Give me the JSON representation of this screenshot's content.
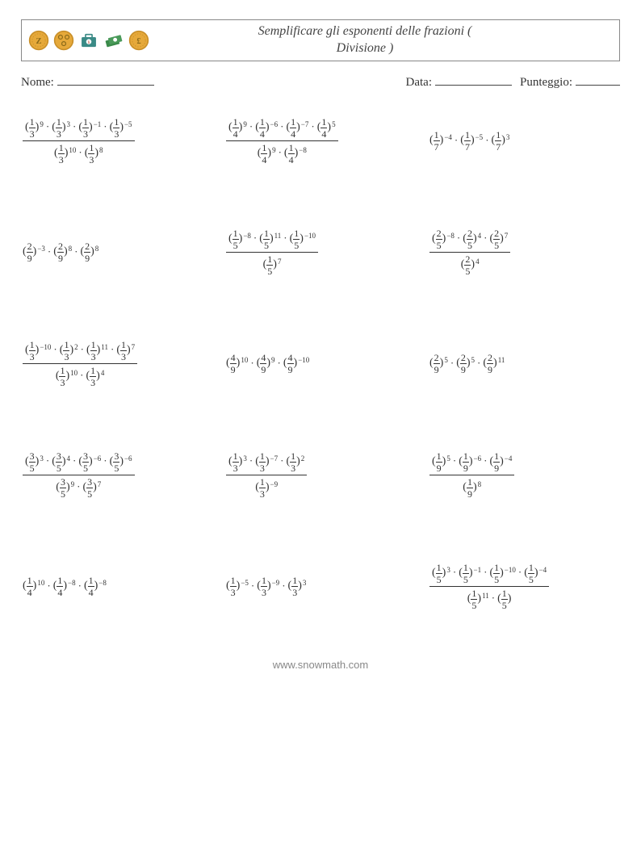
{
  "header": {
    "title_line1": "Semplificare gli esponenti delle frazioni (",
    "title_line2": "Divisione )",
    "icon_colors": {
      "gold": "#e6a93a",
      "gold_dark": "#c98f28",
      "teal": "#3a8a86",
      "green": "#3a8a4a",
      "red": "#c84a3a"
    }
  },
  "info": {
    "name_label": "Nome:",
    "date_label": "Data:",
    "score_label": "Punteggio:"
  },
  "footer": {
    "url": "www.snowmath.com"
  },
  "problems": [
    [
      {
        "type": "div",
        "num": [
          {
            "n": 1,
            "d": 3,
            "e": 9
          },
          {
            "n": 1,
            "d": 3,
            "e": 3
          },
          {
            "n": 1,
            "d": 3,
            "e": -1
          },
          {
            "n": 1,
            "d": 3,
            "e": -5
          }
        ],
        "den": [
          {
            "n": 1,
            "d": 3,
            "e": 10
          },
          {
            "n": 1,
            "d": 3,
            "e": 8
          }
        ]
      },
      {
        "type": "div",
        "num": [
          {
            "n": 1,
            "d": 4,
            "e": 9
          },
          {
            "n": 1,
            "d": 4,
            "e": -6
          },
          {
            "n": 1,
            "d": 4,
            "e": -7
          },
          {
            "n": 1,
            "d": 4,
            "e": 5
          }
        ],
        "den": [
          {
            "n": 1,
            "d": 4,
            "e": 9
          },
          {
            "n": 1,
            "d": 4,
            "e": -8
          }
        ]
      },
      {
        "type": "mul",
        "terms": [
          {
            "n": 1,
            "d": 7,
            "e": -4
          },
          {
            "n": 1,
            "d": 7,
            "e": -5
          },
          {
            "n": 1,
            "d": 7,
            "e": 3
          }
        ]
      }
    ],
    [
      {
        "type": "mul",
        "terms": [
          {
            "n": 2,
            "d": 9,
            "e": -3
          },
          {
            "n": 2,
            "d": 9,
            "e": 8
          },
          {
            "n": 2,
            "d": 9,
            "e": 8
          }
        ]
      },
      {
        "type": "div",
        "num": [
          {
            "n": 1,
            "d": 5,
            "e": -8
          },
          {
            "n": 1,
            "d": 5,
            "e": 11
          },
          {
            "n": 1,
            "d": 5,
            "e": -10
          }
        ],
        "den": [
          {
            "n": 1,
            "d": 5,
            "e": 7
          }
        ]
      },
      {
        "type": "div",
        "num": [
          {
            "n": 2,
            "d": 5,
            "e": -8
          },
          {
            "n": 2,
            "d": 5,
            "e": 4
          },
          {
            "n": 2,
            "d": 5,
            "e": 7
          }
        ],
        "den": [
          {
            "n": 2,
            "d": 5,
            "e": 4
          }
        ]
      }
    ],
    [
      {
        "type": "div",
        "num": [
          {
            "n": 1,
            "d": 3,
            "e": -10
          },
          {
            "n": 1,
            "d": 3,
            "e": 2
          },
          {
            "n": 1,
            "d": 3,
            "e": 11
          },
          {
            "n": 1,
            "d": 3,
            "e": 7
          }
        ],
        "den": [
          {
            "n": 1,
            "d": 3,
            "e": 10
          },
          {
            "n": 1,
            "d": 3,
            "e": 4
          }
        ]
      },
      {
        "type": "mul",
        "terms": [
          {
            "n": 4,
            "d": 9,
            "e": 10
          },
          {
            "n": 4,
            "d": 9,
            "e": 9
          },
          {
            "n": 4,
            "d": 9,
            "e": -10
          }
        ]
      },
      {
        "type": "mul",
        "terms": [
          {
            "n": 2,
            "d": 9,
            "e": 5
          },
          {
            "n": 2,
            "d": 9,
            "e": 5
          },
          {
            "n": 2,
            "d": 9,
            "e": 11
          }
        ]
      }
    ],
    [
      {
        "type": "div",
        "num": [
          {
            "n": 3,
            "d": 5,
            "e": 3
          },
          {
            "n": 3,
            "d": 5,
            "e": 4
          },
          {
            "n": 3,
            "d": 5,
            "e": -6
          },
          {
            "n": 3,
            "d": 5,
            "e": -6
          }
        ],
        "den": [
          {
            "n": 3,
            "d": 5,
            "e": 9
          },
          {
            "n": 3,
            "d": 5,
            "e": 7
          }
        ]
      },
      {
        "type": "div",
        "num": [
          {
            "n": 1,
            "d": 3,
            "e": 3
          },
          {
            "n": 1,
            "d": 3,
            "e": -7
          },
          {
            "n": 1,
            "d": 3,
            "e": 2
          }
        ],
        "den": [
          {
            "n": 1,
            "d": 3,
            "e": -9
          }
        ]
      },
      {
        "type": "div",
        "num": [
          {
            "n": 1,
            "d": 9,
            "e": 5
          },
          {
            "n": 1,
            "d": 9,
            "e": -6
          },
          {
            "n": 1,
            "d": 9,
            "e": -4
          }
        ],
        "den": [
          {
            "n": 1,
            "d": 9,
            "e": 8
          }
        ]
      }
    ],
    [
      {
        "type": "mul",
        "terms": [
          {
            "n": 1,
            "d": 4,
            "e": 10
          },
          {
            "n": 1,
            "d": 4,
            "e": -8
          },
          {
            "n": 1,
            "d": 4,
            "e": -8
          }
        ]
      },
      {
        "type": "mul",
        "terms": [
          {
            "n": 1,
            "d": 3,
            "e": -5
          },
          {
            "n": 1,
            "d": 3,
            "e": -9
          },
          {
            "n": 1,
            "d": 3,
            "e": 3
          }
        ]
      },
      {
        "type": "div",
        "num": [
          {
            "n": 1,
            "d": 5,
            "e": 3
          },
          {
            "n": 1,
            "d": 5,
            "e": -1
          },
          {
            "n": 1,
            "d": 5,
            "e": -10
          },
          {
            "n": 1,
            "d": 5,
            "e": -4
          }
        ],
        "den": [
          {
            "n": 1,
            "d": 5,
            "e": 11
          },
          {
            "n": 1,
            "d": 5,
            "e": null
          }
        ]
      }
    ]
  ]
}
